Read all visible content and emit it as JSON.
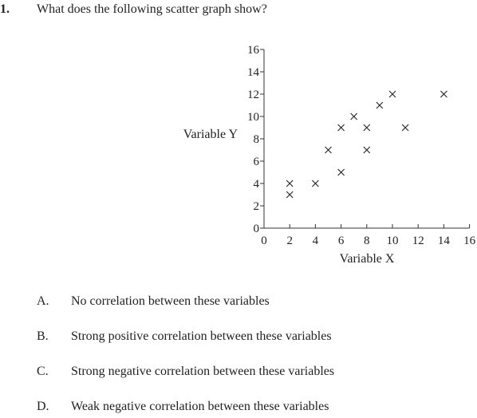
{
  "question": {
    "number": "1.",
    "text": "What does the following scatter graph show?"
  },
  "chart_data": {
    "type": "scatter",
    "marker": "x",
    "xlabel": "Variable X",
    "ylabel": "Variable Y",
    "xlim": [
      0,
      16
    ],
    "ylim": [
      0,
      16
    ],
    "xticks": [
      0,
      2,
      4,
      6,
      8,
      10,
      12,
      14,
      16
    ],
    "yticks": [
      0,
      2,
      4,
      6,
      8,
      10,
      12,
      14,
      16
    ],
    "grid": false,
    "points": [
      {
        "x": 2,
        "y": 4
      },
      {
        "x": 2,
        "y": 3
      },
      {
        "x": 4,
        "y": 4
      },
      {
        "x": 5,
        "y": 7
      },
      {
        "x": 6,
        "y": 5
      },
      {
        "x": 6,
        "y": 9
      },
      {
        "x": 7,
        "y": 10
      },
      {
        "x": 8,
        "y": 9
      },
      {
        "x": 8,
        "y": 7
      },
      {
        "x": 9,
        "y": 11
      },
      {
        "x": 10,
        "y": 12
      },
      {
        "x": 11,
        "y": 9
      },
      {
        "x": 14,
        "y": 12
      }
    ]
  },
  "options": [
    {
      "letter": "A.",
      "text": "No correlation between these variables"
    },
    {
      "letter": "B.",
      "text": "Strong positive correlation between these variables"
    },
    {
      "letter": "C.",
      "text": "Strong negative correlation between these variables"
    },
    {
      "letter": "D.",
      "text": "Weak negative correlation between these variables"
    }
  ]
}
